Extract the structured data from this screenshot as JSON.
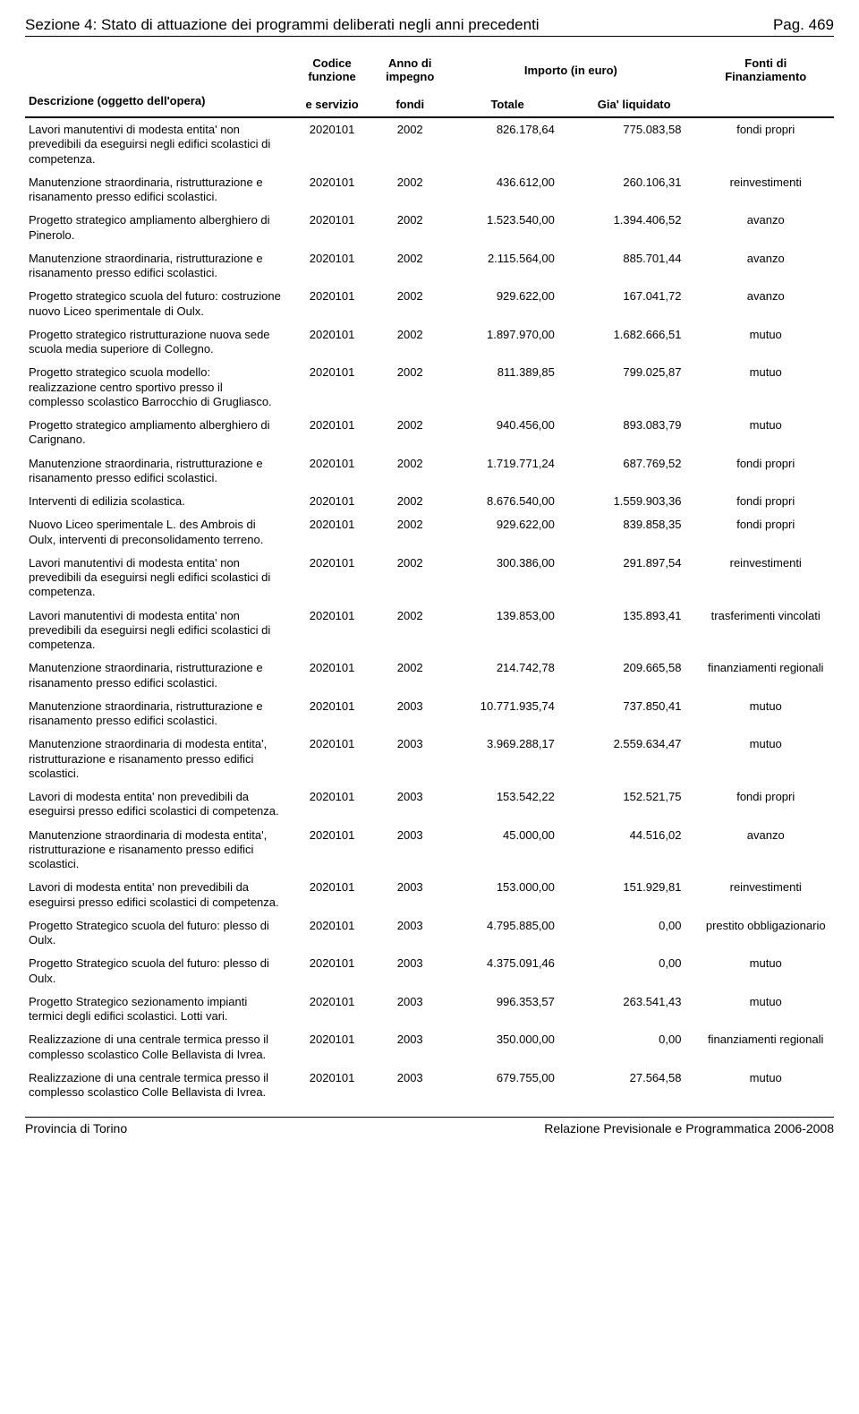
{
  "header": {
    "section_title": "Sezione 4: Stato di attuazione dei programmi deliberati negli anni precedenti",
    "page_label": "Pag. 469"
  },
  "table_header": {
    "descrizione_line1": "",
    "descrizione_line2": "Descrizione (oggetto dell'opera)",
    "codice_line1": "Codice",
    "codice_line2": "funzione",
    "codice_line3": "e servizio",
    "anno_line1": "Anno di",
    "anno_line2": "impegno",
    "anno_line3": "fondi",
    "importo_group": "Importo (in euro)",
    "totale": "Totale",
    "liquidato": "Gia' liquidato",
    "fonti_line1": "Fonti di",
    "fonti_line2": "Finanziamento"
  },
  "rows": [
    {
      "desc": "Lavori manutentivi di modesta entita' non prevedibili da eseguirsi negli edifici scolastici di competenza.",
      "codice": "2020101",
      "anno": "2002",
      "totale": "826.178,64",
      "liquidato": "775.083,58",
      "fonti": "fondi propri"
    },
    {
      "desc": "Manutenzione straordinaria, ristrutturazione e risanamento presso edifici scolastici.",
      "codice": "2020101",
      "anno": "2002",
      "totale": "436.612,00",
      "liquidato": "260.106,31",
      "fonti": "reinvestimenti"
    },
    {
      "desc": "Progetto strategico ampliamento alberghiero di Pinerolo.",
      "codice": "2020101",
      "anno": "2002",
      "totale": "1.523.540,00",
      "liquidato": "1.394.406,52",
      "fonti": "avanzo"
    },
    {
      "desc": "Manutenzione straordinaria, ristrutturazione e risanamento presso edifici scolastici.",
      "codice": "2020101",
      "anno": "2002",
      "totale": "2.115.564,00",
      "liquidato": "885.701,44",
      "fonti": "avanzo"
    },
    {
      "desc": "Progetto strategico scuola del futuro: costruzione nuovo Liceo sperimentale di Oulx.",
      "codice": "2020101",
      "anno": "2002",
      "totale": "929.622,00",
      "liquidato": "167.041,72",
      "fonti": "avanzo"
    },
    {
      "desc": "Progetto strategico ristrutturazione nuova sede scuola media superiore di Collegno.",
      "codice": "2020101",
      "anno": "2002",
      "totale": "1.897.970,00",
      "liquidato": "1.682.666,51",
      "fonti": "mutuo"
    },
    {
      "desc": "Progetto strategico scuola modello: realizzazione centro sportivo presso il complesso scolastico Barrocchio di Grugliasco.",
      "codice": "2020101",
      "anno": "2002",
      "totale": "811.389,85",
      "liquidato": "799.025,87",
      "fonti": "mutuo"
    },
    {
      "desc": "Progetto strategico ampliamento alberghiero di Carignano.",
      "codice": "2020101",
      "anno": "2002",
      "totale": "940.456,00",
      "liquidato": "893.083,79",
      "fonti": "mutuo"
    },
    {
      "desc": "Manutenzione straordinaria, ristrutturazione e risanamento presso edifici scolastici.",
      "codice": "2020101",
      "anno": "2002",
      "totale": "1.719.771,24",
      "liquidato": "687.769,52",
      "fonti": "fondi propri"
    },
    {
      "desc": "Interventi di edilizia scolastica.",
      "codice": "2020101",
      "anno": "2002",
      "totale": "8.676.540,00",
      "liquidato": "1.559.903,36",
      "fonti": "fondi propri"
    },
    {
      "desc": "Nuovo Liceo sperimentale L. des Ambrois di Oulx, interventi di preconsolidamento terreno.",
      "codice": "2020101",
      "anno": "2002",
      "totale": "929.622,00",
      "liquidato": "839.858,35",
      "fonti": "fondi propri"
    },
    {
      "desc": "Lavori manutentivi di modesta entita' non prevedibili da eseguirsi negli edifici scolastici di competenza.",
      "codice": "2020101",
      "anno": "2002",
      "totale": "300.386,00",
      "liquidato": "291.897,54",
      "fonti": "reinvestimenti"
    },
    {
      "desc": "Lavori manutentivi di modesta entita' non prevedibili da eseguirsi negli edifici scolastici di competenza.",
      "codice": "2020101",
      "anno": "2002",
      "totale": "139.853,00",
      "liquidato": "135.893,41",
      "fonti": "trasferimenti vincolati"
    },
    {
      "desc": "Manutenzione straordinaria, ristrutturazione e risanamento presso edifici scolastici.",
      "codice": "2020101",
      "anno": "2002",
      "totale": "214.742,78",
      "liquidato": "209.665,58",
      "fonti": "finanziamenti regionali"
    },
    {
      "desc": "Manutenzione straordinaria, ristrutturazione e risanamento presso edifici scolastici.",
      "codice": "2020101",
      "anno": "2003",
      "totale": "10.771.935,74",
      "liquidato": "737.850,41",
      "fonti": "mutuo"
    },
    {
      "desc": "Manutenzione straordinaria di modesta entita', ristrutturazione e risanamento presso edifici scolastici.",
      "codice": "2020101",
      "anno": "2003",
      "totale": "3.969.288,17",
      "liquidato": "2.559.634,47",
      "fonti": "mutuo"
    },
    {
      "desc": "Lavori di modesta entita' non prevedibili da eseguirsi presso edifici scolastici di competenza.",
      "codice": "2020101",
      "anno": "2003",
      "totale": "153.542,22",
      "liquidato": "152.521,75",
      "fonti": "fondi propri"
    },
    {
      "desc": "Manutenzione straordinaria di modesta entita', ristrutturazione e risanamento presso edifici scolastici.",
      "codice": "2020101",
      "anno": "2003",
      "totale": "45.000,00",
      "liquidato": "44.516,02",
      "fonti": "avanzo"
    },
    {
      "desc": "Lavori di modesta entita' non prevedibili da eseguirsi presso edifici scolastici di competenza.",
      "codice": "2020101",
      "anno": "2003",
      "totale": "153.000,00",
      "liquidato": "151.929,81",
      "fonti": "reinvestimenti"
    },
    {
      "desc": "Progetto Strategico scuola del futuro: plesso di Oulx.",
      "codice": "2020101",
      "anno": "2003",
      "totale": "4.795.885,00",
      "liquidato": "0,00",
      "fonti": "prestito obbligazionario"
    },
    {
      "desc": "Progetto Strategico scuola del futuro: plesso di Oulx.",
      "codice": "2020101",
      "anno": "2003",
      "totale": "4.375.091,46",
      "liquidato": "0,00",
      "fonti": "mutuo"
    },
    {
      "desc": "Progetto Strategico sezionamento impianti termici degli edifici scolastici. Lotti vari.",
      "codice": "2020101",
      "anno": "2003",
      "totale": "996.353,57",
      "liquidato": "263.541,43",
      "fonti": "mutuo"
    },
    {
      "desc": "Realizzazione di una centrale termica presso il complesso scolastico Colle Bellavista di Ivrea.",
      "codice": "2020101",
      "anno": "2003",
      "totale": "350.000,00",
      "liquidato": "0,00",
      "fonti": "finanziamenti regionali"
    },
    {
      "desc": "Realizzazione di una centrale termica presso il complesso scolastico Colle Bellavista di Ivrea.",
      "codice": "2020101",
      "anno": "2003",
      "totale": "679.755,00",
      "liquidato": "27.564,58",
      "fonti": "mutuo"
    }
  ],
  "footer": {
    "left": "Provincia di Torino",
    "right": "Relazione Previsionale e Programmatica 2006-2008"
  },
  "style": {
    "font_family": "Arial",
    "body_font_size_pt": 10,
    "header_font_size_pt": 13,
    "text_color": "#000000",
    "background_color": "#ffffff",
    "rule_color": "#000000"
  }
}
